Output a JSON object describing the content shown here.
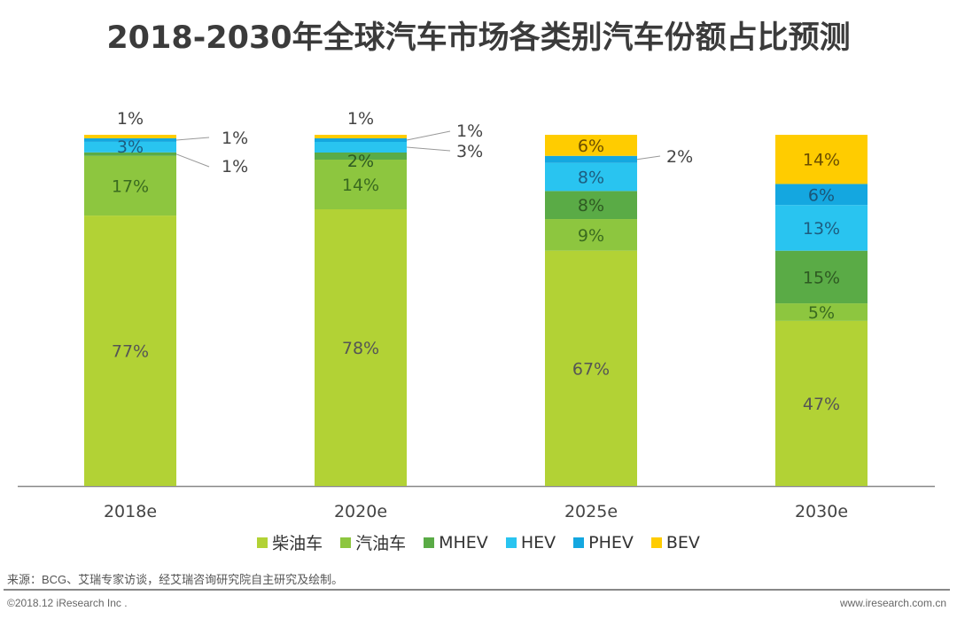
{
  "chart_data": {
    "type": "bar",
    "stacked": true,
    "title": "2018-2030年全球汽车市场各类别汽车份额占比预测",
    "xlabel": "",
    "ylabel": "",
    "ylim": [
      0,
      100
    ],
    "grid": false,
    "legend_position": "bottom",
    "categories": [
      "2018e",
      "2020e",
      "2025e",
      "2030e"
    ],
    "series": [
      {
        "name": "柴油车",
        "color": "#b2d235",
        "values": [
          77,
          78,
          67,
          47
        ]
      },
      {
        "name": "汽油车",
        "color": "#8dc63f",
        "values": [
          17,
          14,
          9,
          5
        ]
      },
      {
        "name": "MHEV",
        "color": "#5aab46",
        "values": [
          1,
          2,
          8,
          15
        ]
      },
      {
        "name": "HEV",
        "color": "#29c4f0",
        "values": [
          3,
          3,
          8,
          13
        ]
      },
      {
        "name": "PHEV",
        "color": "#14a7e0",
        "values": [
          1,
          1,
          2,
          6
        ]
      },
      {
        "name": "BEV",
        "color": "#ffcc00",
        "values": [
          1,
          1,
          6,
          14
        ]
      }
    ],
    "labels": {
      "2018e": [
        "77%",
        "17%",
        "1%",
        "3%",
        "1%",
        "1%"
      ],
      "2020e": [
        "78%",
        "14%",
        "2%",
        "3%",
        "1%",
        "1%"
      ],
      "2025e": [
        "67%",
        "9%",
        "8%",
        "8%",
        "2%",
        "6%"
      ],
      "2030e": [
        "47%",
        "5%",
        "15%",
        "13%",
        "6%",
        "14%"
      ]
    }
  },
  "footer": {
    "source": "来源：BCG、艾瑞专家访谈，经艾瑞咨询研究院自主研究及绘制。",
    "copyright": "©2018.12 iResearch Inc .",
    "website": "www.iresearch.com.cn"
  }
}
